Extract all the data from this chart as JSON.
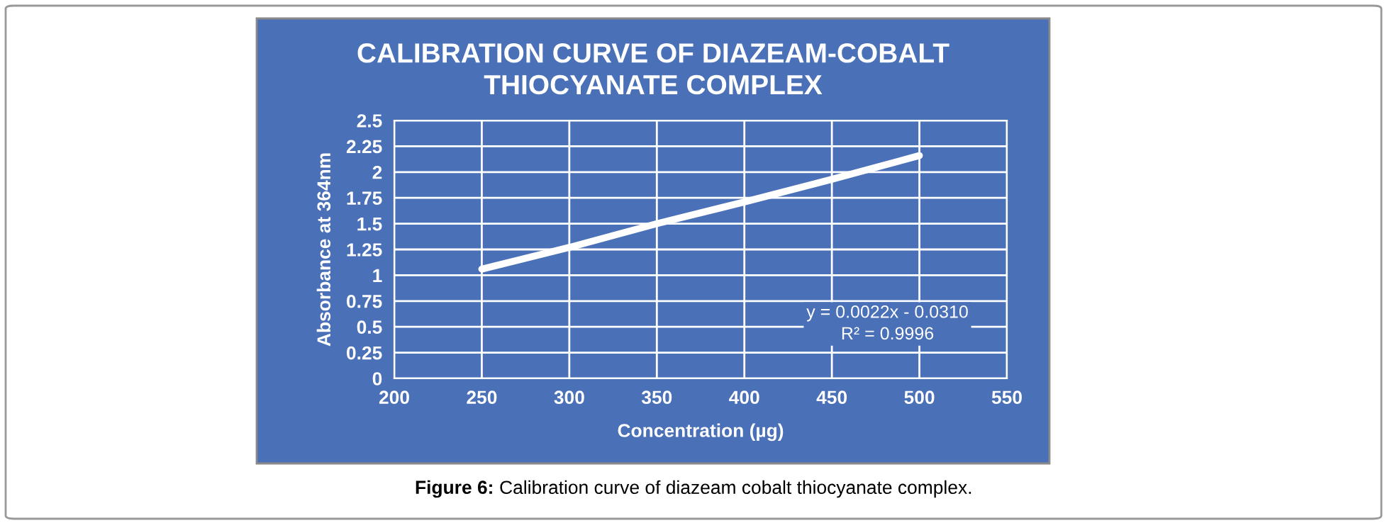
{
  "chart_data": {
    "type": "line",
    "title": "CALIBRATION CURVE OF DIAZEAM-COBALT THIOCYANATE COMPLEX",
    "xlabel": "Concentration (µg)",
    "ylabel": "Absorbance at 364nm",
    "x": [
      250,
      300,
      350,
      400,
      450,
      500
    ],
    "series": [
      {
        "color": "#ffffff",
        "values": [
          1.06,
          1.27,
          1.5,
          1.71,
          1.93,
          2.16
        ]
      }
    ],
    "xlim": [
      200,
      550
    ],
    "xticks": [
      200,
      250,
      300,
      350,
      400,
      450,
      500,
      550
    ],
    "ylim": [
      0,
      2.5
    ],
    "yticks": [
      0,
      0.25,
      0.5,
      0.75,
      1,
      1.25,
      1.5,
      1.75,
      2,
      2.25,
      2.5
    ],
    "grid": true,
    "marker": "none",
    "line_style": "solid",
    "annotations": [
      "y = 0.0022x - 0.0310\nR² = 0.9996",
      "Figure 6: Calibration curve of diazeam cobalt thiocyanate complex."
    ]
  }
}
